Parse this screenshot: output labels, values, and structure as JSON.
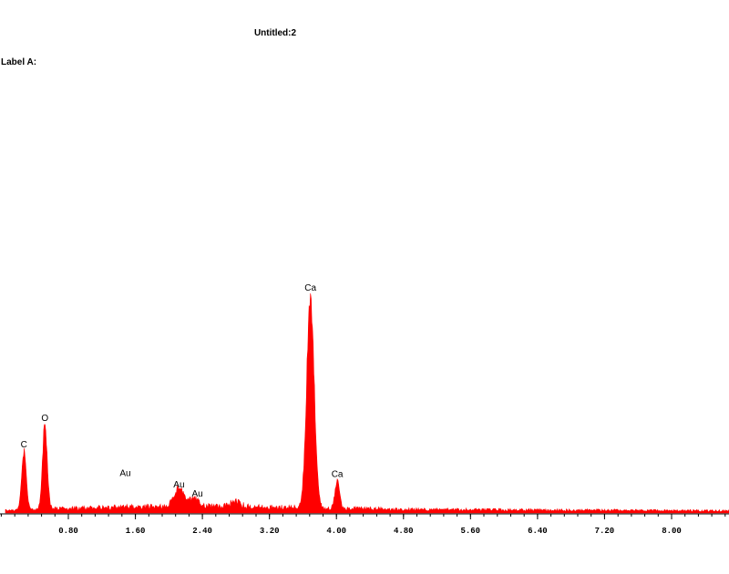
{
  "window": {
    "title": "Untitled:2",
    "label": "Label A:"
  },
  "chart_data": {
    "type": "area",
    "title": "Untitled:2",
    "xlabel": "",
    "ylabel": "",
    "xlim": [
      -0.2,
      9.55
    ],
    "ylim": [
      0,
      290
    ],
    "grid": false,
    "legend": "none",
    "xticks": [
      "0.80",
      "1.60",
      "2.40",
      "3.20",
      "4.00",
      "4.80",
      "5.60",
      "6.40",
      "7.20",
      "8.00"
    ],
    "series_color": "#ff0000",
    "peaks": [
      {
        "element": "C",
        "x": 0.27,
        "y": 78
      },
      {
        "element": "O",
        "x": 0.52,
        "y": 112
      },
      {
        "element": "Au",
        "x": 1.48,
        "y": 0
      },
      {
        "element": "Au",
        "x": 2.12,
        "y": 25
      },
      {
        "element": "Au",
        "x": 2.3,
        "y": 10
      },
      {
        "element": "Ca",
        "x": 3.69,
        "y": 285
      },
      {
        "element": "Ca",
        "x": 4.01,
        "y": 38
      }
    ],
    "peak_labels": [
      {
        "text": "C",
        "x": 0.27,
        "y": 83
      },
      {
        "text": "O",
        "x": 0.52,
        "y": 118
      },
      {
        "text": "Au",
        "x": 1.48,
        "y": 45
      },
      {
        "text": "Au",
        "x": 2.12,
        "y": 30
      },
      {
        "text": "Au",
        "x": 2.34,
        "y": 18
      },
      {
        "text": "Ca",
        "x": 3.69,
        "y": 290
      },
      {
        "text": "Ca",
        "x": 4.01,
        "y": 44
      }
    ]
  }
}
